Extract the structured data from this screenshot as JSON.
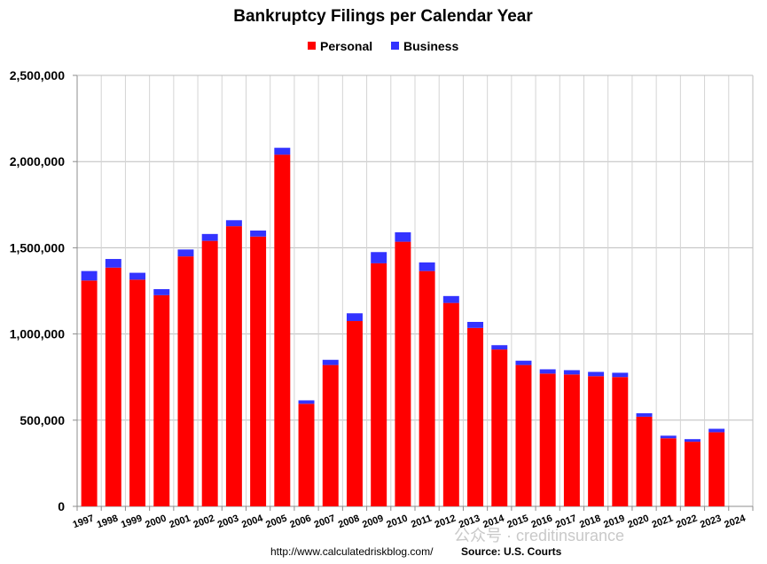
{
  "chart_data": {
    "type": "bar",
    "stacked": true,
    "title": "Bankruptcy Filings per Calendar Year",
    "categories": [
      "1997",
      "1998",
      "1999",
      "2000",
      "2001",
      "2002",
      "2003",
      "2004",
      "2005",
      "2006",
      "2007",
      "2008",
      "2009",
      "2010",
      "2011",
      "2012",
      "2013",
      "2014",
      "2015",
      "2016",
      "2017",
      "2018",
      "2019",
      "2020",
      "2021",
      "2022",
      "2023",
      "2024"
    ],
    "series": [
      {
        "name": "Personal",
        "color": "#ff0000",
        "values": [
          1310000,
          1385000,
          1315000,
          1225000,
          1450000,
          1540000,
          1625000,
          1565000,
          2040000,
          595000,
          820000,
          1075000,
          1410000,
          1535000,
          1365000,
          1180000,
          1035000,
          910000,
          820000,
          770000,
          765000,
          755000,
          750000,
          520000,
          395000,
          375000,
          430000,
          null
        ]
      },
      {
        "name": "Business",
        "color": "#3333ff",
        "values": [
          55000,
          50000,
          40000,
          35000,
          40000,
          40000,
          35000,
          35000,
          40000,
          20000,
          30000,
          45000,
          65000,
          55000,
          50000,
          40000,
          35000,
          25000,
          25000,
          25000,
          25000,
          25000,
          25000,
          20000,
          15000,
          15000,
          20000,
          null
        ]
      }
    ],
    "ylim": [
      0,
      2500000
    ],
    "yticks": [
      0,
      500000,
      1000000,
      1500000,
      2000000,
      2500000
    ],
    "ytick_labels": [
      "0",
      "500,000",
      "1,000,000",
      "1,500,000",
      "2,000,000",
      "2,500,000"
    ],
    "grid": true,
    "legend_position": "top-center"
  },
  "footer": {
    "url": "http://www.calculatedriskblog.com/",
    "source": "Source: U.S. Courts"
  },
  "watermark": "公众号 · creditinsurance"
}
